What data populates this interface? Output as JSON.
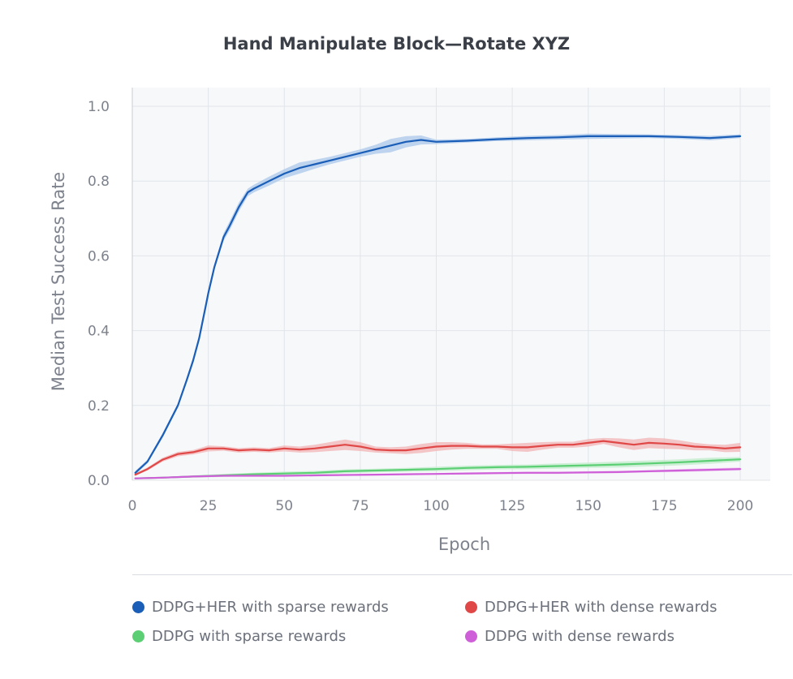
{
  "chart_data": {
    "type": "line",
    "title": "Hand Manipulate Block—Rotate XYZ",
    "xlabel": "Epoch",
    "ylabel": "Median Test Success Rate",
    "xlim": [
      0,
      200
    ],
    "ylim": [
      0,
      1.05
    ],
    "xticks": [
      0,
      25,
      50,
      75,
      100,
      125,
      150,
      175,
      200
    ],
    "yticks": [
      "0.0",
      "0.2",
      "0.4",
      "0.6",
      "0.8",
      "1.0"
    ],
    "grid": true,
    "legend_position": "bottom",
    "series": [
      {
        "name": "DDPG+HER with sparse rewards",
        "color": "#1a5eb8",
        "band_color": "#a9c7ea",
        "x": [
          1,
          5,
          10,
          15,
          18,
          20,
          22,
          24,
          25,
          27,
          30,
          32,
          35,
          38,
          40,
          45,
          50,
          55,
          60,
          65,
          70,
          75,
          80,
          85,
          90,
          95,
          100,
          110,
          120,
          130,
          140,
          150,
          160,
          170,
          180,
          190,
          200
        ],
        "y": [
          0.02,
          0.05,
          0.12,
          0.2,
          0.27,
          0.32,
          0.38,
          0.46,
          0.5,
          0.57,
          0.65,
          0.68,
          0.73,
          0.77,
          0.78,
          0.8,
          0.82,
          0.835,
          0.845,
          0.855,
          0.865,
          0.875,
          0.885,
          0.895,
          0.905,
          0.91,
          0.905,
          0.908,
          0.912,
          0.915,
          0.917,
          0.92,
          0.92,
          0.92,
          0.918,
          0.915,
          0.92
        ],
        "band": [
          0.005,
          0.005,
          0.006,
          0.006,
          0.006,
          0.008,
          0.008,
          0.008,
          0.008,
          0.008,
          0.01,
          0.012,
          0.012,
          0.01,
          0.01,
          0.012,
          0.012,
          0.015,
          0.012,
          0.01,
          0.01,
          0.01,
          0.012,
          0.018,
          0.015,
          0.012,
          0.006,
          0.005,
          0.005,
          0.006,
          0.006,
          0.007,
          0.006,
          0.005,
          0.005,
          0.006,
          0.005
        ]
      },
      {
        "name": "DDPG+HER with dense rewards",
        "color": "#e04848",
        "band_color": "#f2b4b4",
        "x": [
          1,
          5,
          10,
          15,
          20,
          25,
          30,
          35,
          40,
          45,
          50,
          55,
          60,
          65,
          70,
          75,
          80,
          85,
          90,
          95,
          100,
          105,
          110,
          115,
          120,
          125,
          130,
          135,
          140,
          145,
          150,
          155,
          160,
          165,
          170,
          175,
          180,
          185,
          190,
          195,
          200
        ],
        "y": [
          0.015,
          0.03,
          0.055,
          0.07,
          0.075,
          0.085,
          0.085,
          0.08,
          0.082,
          0.08,
          0.085,
          0.082,
          0.085,
          0.09,
          0.095,
          0.09,
          0.082,
          0.08,
          0.08,
          0.085,
          0.09,
          0.092,
          0.092,
          0.09,
          0.09,
          0.088,
          0.088,
          0.092,
          0.095,
          0.095,
          0.1,
          0.105,
          0.1,
          0.095,
          0.1,
          0.098,
          0.095,
          0.09,
          0.088,
          0.085,
          0.088
        ],
        "band": [
          0.003,
          0.004,
          0.005,
          0.006,
          0.006,
          0.008,
          0.006,
          0.006,
          0.006,
          0.006,
          0.008,
          0.008,
          0.01,
          0.012,
          0.014,
          0.012,
          0.008,
          0.008,
          0.01,
          0.012,
          0.012,
          0.01,
          0.008,
          0.006,
          0.006,
          0.01,
          0.012,
          0.01,
          0.008,
          0.008,
          0.01,
          0.008,
          0.012,
          0.014,
          0.014,
          0.014,
          0.012,
          0.01,
          0.008,
          0.01,
          0.012
        ]
      },
      {
        "name": "DDPG with sparse rewards",
        "color": "#5ccf75",
        "band_color": "#bfecc8",
        "x": [
          1,
          10,
          20,
          30,
          40,
          50,
          60,
          70,
          80,
          90,
          100,
          110,
          120,
          130,
          140,
          150,
          160,
          170,
          180,
          190,
          200
        ],
        "y": [
          0.005,
          0.007,
          0.01,
          0.013,
          0.016,
          0.018,
          0.02,
          0.024,
          0.026,
          0.028,
          0.03,
          0.033,
          0.035,
          0.036,
          0.038,
          0.04,
          0.042,
          0.045,
          0.048,
          0.052,
          0.056
        ],
        "band": [
          0.002,
          0.002,
          0.003,
          0.004,
          0.004,
          0.005,
          0.005,
          0.005,
          0.005,
          0.005,
          0.006,
          0.006,
          0.006,
          0.006,
          0.007,
          0.007,
          0.008,
          0.008,
          0.008,
          0.008,
          0.006
        ]
      },
      {
        "name": "DDPG with dense rewards",
        "color": "#cf5fd8",
        "band_color": "#ecc2ef",
        "x": [
          1,
          10,
          20,
          30,
          40,
          50,
          60,
          70,
          80,
          90,
          100,
          110,
          120,
          130,
          140,
          150,
          160,
          170,
          180,
          190,
          200
        ],
        "y": [
          0.005,
          0.007,
          0.01,
          0.012,
          0.012,
          0.012,
          0.013,
          0.014,
          0.015,
          0.016,
          0.017,
          0.018,
          0.019,
          0.02,
          0.02,
          0.021,
          0.022,
          0.024,
          0.026,
          0.028,
          0.03
        ],
        "band": [
          0.001,
          0.002,
          0.002,
          0.002,
          0.002,
          0.002,
          0.002,
          0.002,
          0.002,
          0.002,
          0.002,
          0.003,
          0.003,
          0.003,
          0.003,
          0.003,
          0.003,
          0.003,
          0.004,
          0.004,
          0.004
        ]
      }
    ]
  }
}
